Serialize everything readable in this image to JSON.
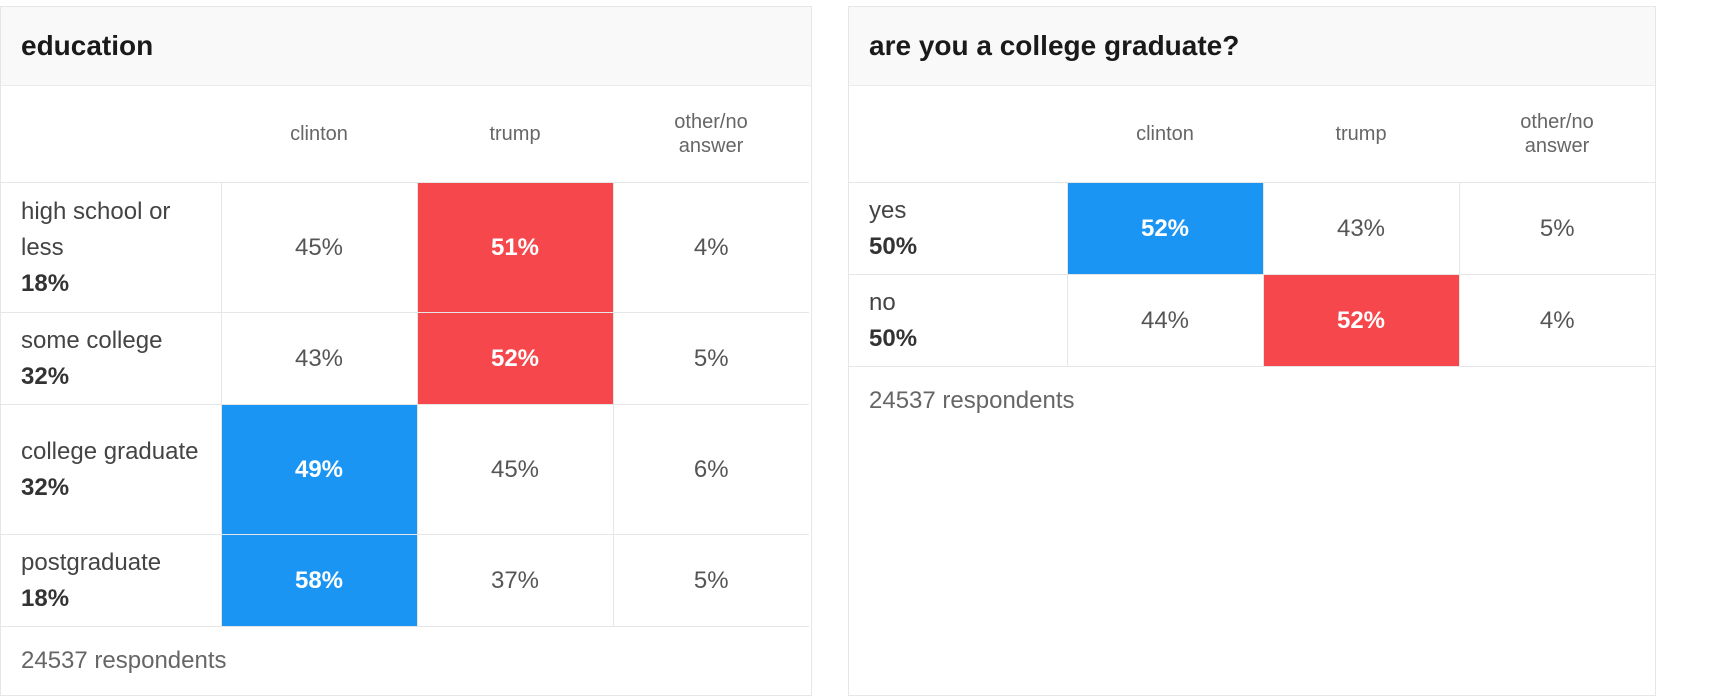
{
  "colors": {
    "clinton": "#1b95f4",
    "trump": "#f6484c"
  },
  "chart_data": [
    {
      "type": "table",
      "title": "education",
      "columns": [
        "clinton",
        "trump",
        "other/no answer"
      ],
      "rows": [
        {
          "label": "high school or less",
          "share": "18%",
          "values": [
            "45%",
            "51%",
            "4%"
          ],
          "winner": 1
        },
        {
          "label": "some college",
          "share": "32%",
          "values": [
            "43%",
            "52%",
            "5%"
          ],
          "winner": 1
        },
        {
          "label": "college graduate",
          "share": "32%",
          "values": [
            "49%",
            "45%",
            "6%"
          ],
          "winner": 0
        },
        {
          "label": "postgraduate",
          "share": "18%",
          "values": [
            "58%",
            "37%",
            "5%"
          ],
          "winner": 0
        }
      ],
      "respondents": "24537 respondents"
    },
    {
      "type": "table",
      "title": "are you a college graduate?",
      "columns": [
        "clinton",
        "trump",
        "other/no answer"
      ],
      "rows": [
        {
          "label": "yes",
          "share": "50%",
          "values": [
            "52%",
            "43%",
            "5%"
          ],
          "winner": 0
        },
        {
          "label": "no",
          "share": "50%",
          "values": [
            "44%",
            "52%",
            "4%"
          ],
          "winner": 1
        }
      ],
      "respondents": "24537 respondents"
    }
  ]
}
